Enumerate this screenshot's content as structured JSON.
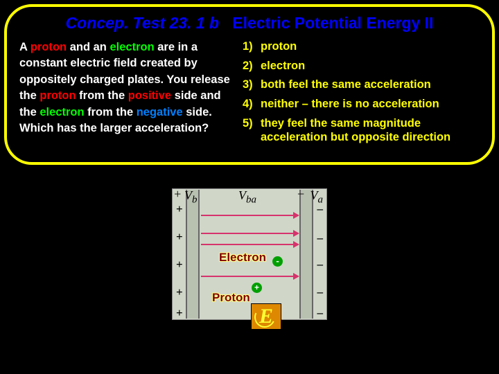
{
  "title": {
    "prefix": "Concep. Test 23. 1 b",
    "main": "Electric Potential Energy II"
  },
  "question": {
    "parts": [
      {
        "t": "A ",
        "c": ""
      },
      {
        "t": "proton",
        "c": "proton"
      },
      {
        "t": " and an ",
        "c": ""
      },
      {
        "t": "electron",
        "c": "electron"
      },
      {
        "t": " are in a constant electric field created by oppositely charged plates. You release the ",
        "c": ""
      },
      {
        "t": "proton",
        "c": "proton"
      },
      {
        "t": " from the ",
        "c": ""
      },
      {
        "t": "positive",
        "c": "positive"
      },
      {
        "t": " side and the ",
        "c": ""
      },
      {
        "t": "electron",
        "c": "electron"
      },
      {
        "t": " from the ",
        "c": ""
      },
      {
        "t": "negative",
        "c": "negative"
      },
      {
        "t": " side.  Which has the larger acceleration?",
        "c": ""
      }
    ]
  },
  "options": [
    {
      "n": "1)",
      "txt": "proton"
    },
    {
      "n": "2)",
      "txt": "electron"
    },
    {
      "n": "3)",
      "txt": "both feel the same acceleration"
    },
    {
      "n": "4)",
      "txt": "neither – there is no acceleration"
    },
    {
      "n": "5)",
      "txt": "they feel the same magnitude acceleration but opposite direction"
    }
  ],
  "diagram": {
    "left_signs_y": [
      20,
      60,
      100,
      140,
      170
    ],
    "right_signs_y": [
      20,
      62,
      100,
      140,
      170
    ],
    "field_lines_y": [
      38,
      64,
      80,
      126
    ],
    "v_left": "V",
    "v_left_sub": "b",
    "v_right": "V",
    "v_right_sub": "a",
    "v_mid": "V",
    "v_mid_sub": "ba",
    "electron_label": "Electron",
    "electron_sign": "-",
    "proton_label": "Proton",
    "proton_sign": "+",
    "logo_letter": "E",
    "colors": {
      "field_line": "#d6336c",
      "plate_bg": "#d0d6c8",
      "logo_bg": "#dd8800"
    }
  }
}
